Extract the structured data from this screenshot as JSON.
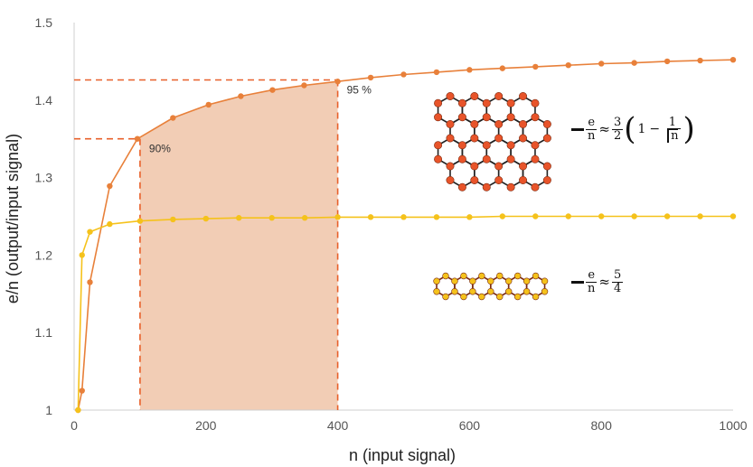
{
  "chart_data": {
    "type": "line",
    "xlabel": "n (input signal)",
    "ylabel": "e/n (output/input signal)",
    "xlim": [
      0,
      1000
    ],
    "ylim": [
      1,
      1.5
    ],
    "xticks": [
      0,
      200,
      400,
      600,
      800,
      1000
    ],
    "yticks": [
      1,
      1.1,
      1.2,
      1.3,
      1.4,
      1.5
    ],
    "grid": false,
    "series": [
      {
        "color": "#e8803a",
        "x": [
          6,
          12,
          24,
          54,
          96,
          150,
          204,
          253,
          301,
          349,
          400,
          450,
          500,
          550,
          600,
          650,
          700,
          750,
          800,
          850,
          900,
          950,
          1000
        ],
        "y": [
          1.0,
          1.025,
          1.165,
          1.289,
          1.35,
          1.377,
          1.394,
          1.405,
          1.413,
          1.419,
          1.424,
          1.429,
          1.433,
          1.436,
          1.439,
          1.441,
          1.443,
          1.445,
          1.447,
          1.448,
          1.45,
          1.451,
          1.452
        ]
      },
      {
        "color": "#f5c21b",
        "x": [
          6,
          12,
          24,
          54,
          100,
          150,
          200,
          250,
          300,
          350,
          400,
          450,
          500,
          550,
          600,
          650,
          700,
          750,
          800,
          850,
          900,
          950,
          1000
        ],
        "y": [
          1.0,
          1.2,
          1.23,
          1.24,
          1.244,
          1.246,
          1.247,
          1.248,
          1.248,
          1.248,
          1.249,
          1.249,
          1.249,
          1.249,
          1.249,
          1.25,
          1.25,
          1.25,
          1.25,
          1.25,
          1.25,
          1.25,
          1.25
        ]
      }
    ],
    "shaded_region": {
      "x_from": 100,
      "x_to": 400,
      "color": "#f0c4a8"
    },
    "reference_lines": [
      {
        "x": 100,
        "y": 1.35,
        "color": "#e8602a"
      },
      {
        "x": 400,
        "y": 1.426,
        "color": "#e8602a"
      }
    ],
    "annotations": [
      {
        "text": "90%",
        "x": 100,
        "y": 1.35
      },
      {
        "text": "95 %",
        "x": 400,
        "y": 1.426
      }
    ]
  },
  "formulas": {
    "honeycomb": {
      "lhs_num": "e",
      "lhs_den": "n",
      "approx": "≈",
      "coef_num": "3",
      "coef_den": "2",
      "open_paren": "(",
      "one": "1",
      "minus": "−",
      "inner_num": "1",
      "inner_den": "n",
      "close_paren": ")"
    },
    "ribbon": {
      "lhs_num": "e",
      "lhs_den": "n",
      "approx": "≈",
      "coef_num": "5",
      "coef_den": "4"
    }
  },
  "icons": {
    "honeycomb_lattice": "hexagonal-lattice-large",
    "hex_ribbon": "hexagonal-lattice-ribbon"
  }
}
